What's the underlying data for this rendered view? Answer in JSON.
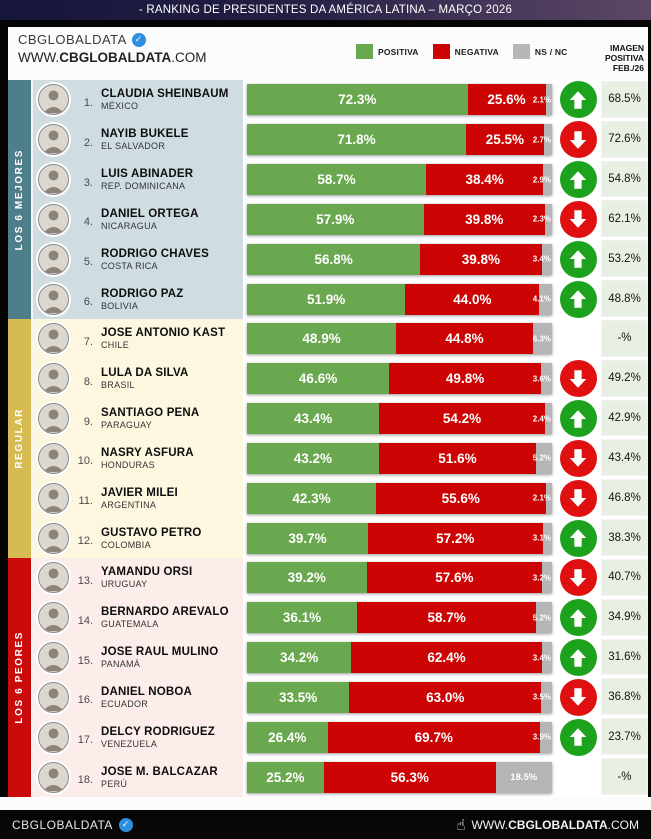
{
  "title_bar": {
    "title": "- RANKING DE PRESIDENTES DA AMÉRICA LATINA – MARÇO 2026"
  },
  "header": {
    "brand": "CBGLOBALDATA",
    "verified_icon": "✓",
    "website": {
      "prefix": "WWW.",
      "bold": "CBGLOBALDATA",
      "suffix": ".COM"
    },
    "legend": [
      {
        "label": "POSITIVA",
        "color": "#6aa84f"
      },
      {
        "label": "NEGATIVA",
        "color": "#cc0404"
      },
      {
        "label": "NS / NC",
        "color": "#b7b7b7"
      }
    ],
    "right_column_header": [
      "IMAGEN",
      "POSITIVA",
      "FEB./26"
    ]
  },
  "sections": [
    {
      "label": "LOS 6 MEJORES",
      "sidebar_color": "#4d7e8a",
      "row_bg": "#cfdde3",
      "row_start": 0,
      "row_count": 6
    },
    {
      "label": "REGULAR",
      "sidebar_color": "#d6ba52",
      "row_bg": "#fdf7e0",
      "row_start": 6,
      "row_count": 6
    },
    {
      "label": "LOS 6 PEORES",
      "sidebar_color": "#cb0b0b",
      "row_bg": "#fcedeb",
      "row_start": 12,
      "row_count": 6
    }
  ],
  "chart_data": {
    "type": "bar",
    "stacked": true,
    "orientation": "horizontal",
    "title": "- RANKING DE PRESIDENTES DA AMÉRICA LATINA – MARÇO 2026",
    "series_names": [
      "POSITIVA",
      "NEGATIVA",
      "NS / NC"
    ],
    "series_colors": {
      "positiva": "#6aa84f",
      "negativa": "#cc0404",
      "ns_nc": "#b5b5b5"
    },
    "value_range": [
      0,
      100
    ],
    "extra_column_label": "IMAGEN POSITIVA FEB./26",
    "rows": [
      {
        "rank": "1.",
        "name": "CLAUDIA SHEINBAUM",
        "country": "MÉXICO",
        "positiva": 72.3,
        "negativa": 25.6,
        "ns_nc": 2.1,
        "trend": "up",
        "imagen_positiva_feb26": "68.5%"
      },
      {
        "rank": "2.",
        "name": "NAYIB BUKELE",
        "country": "EL SALVADOR",
        "positiva": 71.8,
        "negativa": 25.5,
        "ns_nc": 2.7,
        "trend": "down",
        "imagen_positiva_feb26": "72.6%"
      },
      {
        "rank": "3.",
        "name": "LUIS ABINADER",
        "country": "REP. DOMINICANA",
        "positiva": 58.7,
        "negativa": 38.4,
        "ns_nc": 2.9,
        "trend": "up",
        "imagen_positiva_feb26": "54.8%"
      },
      {
        "rank": "4.",
        "name": "DANIEL ORTEGA",
        "country": "NICARAGUA",
        "positiva": 57.9,
        "negativa": 39.8,
        "ns_nc": 2.3,
        "trend": "down",
        "imagen_positiva_feb26": "62.1%"
      },
      {
        "rank": "5.",
        "name": "RODRIGO CHAVES",
        "country": "COSTA RICA",
        "positiva": 56.8,
        "negativa": 39.8,
        "ns_nc": 3.4,
        "trend": "up",
        "imagen_positiva_feb26": "53.2%"
      },
      {
        "rank": "6.",
        "name": "RODRIGO PAZ",
        "country": "BOLIVIA",
        "positiva": 51.9,
        "negativa": 44.0,
        "ns_nc": 4.1,
        "trend": "up",
        "imagen_positiva_feb26": "48.8%"
      },
      {
        "rank": "7.",
        "name": "JOSÉ ANTONIO KAST",
        "country": "CHILE",
        "positiva": 48.9,
        "negativa": 44.8,
        "ns_nc": 6.3,
        "trend": "none",
        "imagen_positiva_feb26": "-%"
      },
      {
        "rank": "8.",
        "name": "LULA DA SILVA",
        "country": "BRASIL",
        "positiva": 46.6,
        "negativa": 49.8,
        "ns_nc": 3.6,
        "trend": "down",
        "imagen_positiva_feb26": "49.2%"
      },
      {
        "rank": "9.",
        "name": "SANTIAGO PEÑA",
        "country": "PARAGUAY",
        "positiva": 43.4,
        "negativa": 54.2,
        "ns_nc": 2.4,
        "trend": "up",
        "imagen_positiva_feb26": "42.9%"
      },
      {
        "rank": "10.",
        "name": "NASRY ASFURA",
        "country": "HONDURAS",
        "positiva": 43.2,
        "negativa": 51.6,
        "ns_nc": 5.2,
        "trend": "down",
        "imagen_positiva_feb26": "43.4%"
      },
      {
        "rank": "11.",
        "name": "JAVIER MILEI",
        "country": "ARGENTINA",
        "positiva": 42.3,
        "negativa": 55.6,
        "ns_nc": 2.1,
        "trend": "down",
        "imagen_positiva_feb26": "46.8%"
      },
      {
        "rank": "12.",
        "name": "GUSTAVO PETRO",
        "country": "COLOMBIA",
        "positiva": 39.7,
        "negativa": 57.2,
        "ns_nc": 3.1,
        "trend": "up",
        "imagen_positiva_feb26": "38.3%"
      },
      {
        "rank": "13.",
        "name": "YAMANDÚ ORSI",
        "country": "URUGUAY",
        "positiva": 39.2,
        "negativa": 57.6,
        "ns_nc": 3.2,
        "trend": "down",
        "imagen_positiva_feb26": "40.7%"
      },
      {
        "rank": "14.",
        "name": "BERNARDO ARÉVALO",
        "country": "GUATEMALA",
        "positiva": 36.1,
        "negativa": 58.7,
        "ns_nc": 5.2,
        "trend": "up",
        "imagen_positiva_feb26": "34.9%"
      },
      {
        "rank": "15.",
        "name": "JOSÉ RAÚL MULINO",
        "country": "PANAMÁ",
        "positiva": 34.2,
        "negativa": 62.4,
        "ns_nc": 3.4,
        "trend": "up",
        "imagen_positiva_feb26": "31.6%"
      },
      {
        "rank": "16.",
        "name": "DANIEL NOBOA",
        "country": "ECUADOR",
        "positiva": 33.5,
        "negativa": 63.0,
        "ns_nc": 3.5,
        "trend": "down",
        "imagen_positiva_feb26": "36.8%"
      },
      {
        "rank": "17.",
        "name": "DELCY RODRÍGUEZ",
        "country": "VENEZUELA",
        "positiva": 26.4,
        "negativa": 69.7,
        "ns_nc": 3.9,
        "trend": "up",
        "imagen_positiva_feb26": "23.7%"
      },
      {
        "rank": "18.",
        "name": "JOSÉ M. BALCÁZAR",
        "country": "PERÚ",
        "positiva": 25.2,
        "negativa": 56.3,
        "ns_nc": 18.5,
        "trend": "none",
        "imagen_positiva_feb26": "-%"
      }
    ]
  },
  "trend_colors": {
    "up": "#1ca21c",
    "down": "#e01010"
  },
  "footer": {
    "brand": "CBGLOBALDATA",
    "verified_icon": "✓",
    "hand_icon": "☝",
    "website": {
      "prefix": "WWW.",
      "bold": "CBGLOBALDATA",
      "suffix": ".COM"
    }
  }
}
